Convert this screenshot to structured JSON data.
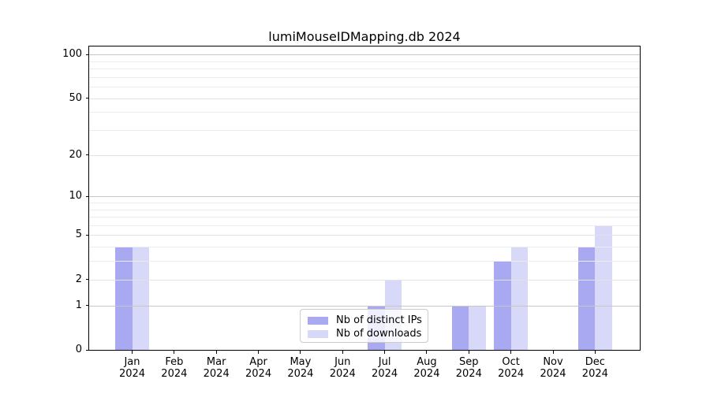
{
  "title": "lumiMouseIDMapping.db 2024",
  "chart_data": {
    "type": "bar",
    "title": "lumiMouseIDMapping.db 2024",
    "months": [
      "Jan",
      "Feb",
      "Mar",
      "Apr",
      "May",
      "Jun",
      "Jul",
      "Aug",
      "Sep",
      "Oct",
      "Nov",
      "Dec"
    ],
    "year": "2024",
    "series": [
      {
        "name": "Nb of distinct IPs",
        "color": "#a9a9f1",
        "values": [
          4,
          0,
          0,
          0,
          0,
          0,
          1,
          0,
          1,
          3,
          0,
          4
        ]
      },
      {
        "name": "Nb of downloads",
        "color": "#d8d8f8",
        "values": [
          4,
          0,
          0,
          0,
          0,
          0,
          2,
          0,
          1,
          4,
          0,
          6
        ]
      }
    ],
    "yscale": "log10(1+v)",
    "ylim": [
      0,
      113
    ],
    "yticks": [
      100,
      50,
      20,
      10,
      5,
      2,
      1,
      0
    ],
    "minor_gridlines": [
      90,
      80,
      70,
      60,
      40,
      30,
      9,
      8,
      7,
      6,
      4,
      3
    ],
    "decade_gridlines": [
      100,
      10,
      1
    ],
    "grid": "on, drawn above bars",
    "legend_position": "lower center",
    "xlabel": "",
    "ylabel": ""
  }
}
